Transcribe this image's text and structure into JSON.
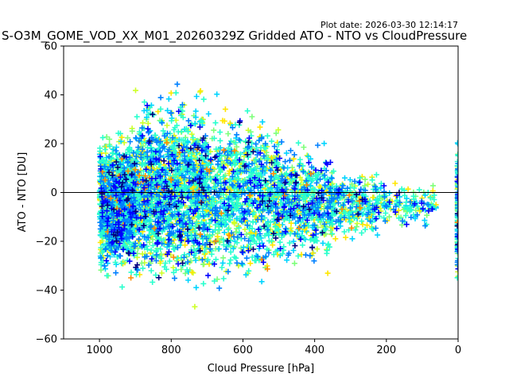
{
  "plot_date": "Plot date: 2026-03-30 12:14:17",
  "chart_data": {
    "type": "scatter",
    "title": "S-O3M_GOME_VOD_XX_M01_20260329Z Gridded ATO - NTO vs CloudPressure",
    "xlabel": "Cloud Pressure [hPa]",
    "ylabel": "ATO - NTO [DU]",
    "xlim": [
      1100,
      0
    ],
    "ylim": [
      -60,
      60
    ],
    "x_inverted": true,
    "xticks": [
      1000,
      800,
      600,
      400,
      200,
      0
    ],
    "yticks": [
      -60,
      -40,
      -20,
      0,
      20,
      40,
      60
    ],
    "reference_line_y": 0,
    "marker": "+",
    "grid": false,
    "colormap": "jet",
    "point_colors": [
      "#00007f",
      "#0000ff",
      "#0080ff",
      "#00d4ff",
      "#29ffce",
      "#7dff7a",
      "#ceff29",
      "#ffe600",
      "#ff8c00"
    ],
    "density_regions": [
      {
        "x": [
          1000,
          900
        ],
        "y_center": -5,
        "y_spread": 40,
        "count": 1400
      },
      {
        "x": [
          900,
          700
        ],
        "y_center": 0,
        "y_spread": 55,
        "count": 1600
      },
      {
        "x": [
          700,
          500
        ],
        "y_center": -2,
        "y_spread": 50,
        "count": 1000
      },
      {
        "x": [
          500,
          350
        ],
        "y_center": -5,
        "y_spread": 35,
        "count": 600
      },
      {
        "x": [
          350,
          200
        ],
        "y_center": -5,
        "y_spread": 20,
        "count": 300
      },
      {
        "x": [
          200,
          60
        ],
        "y_center": -5,
        "y_spread": 12,
        "count": 120
      },
      {
        "x": [
          2,
          0
        ],
        "y_center": -10,
        "y_spread": 45,
        "count": 150
      }
    ]
  }
}
